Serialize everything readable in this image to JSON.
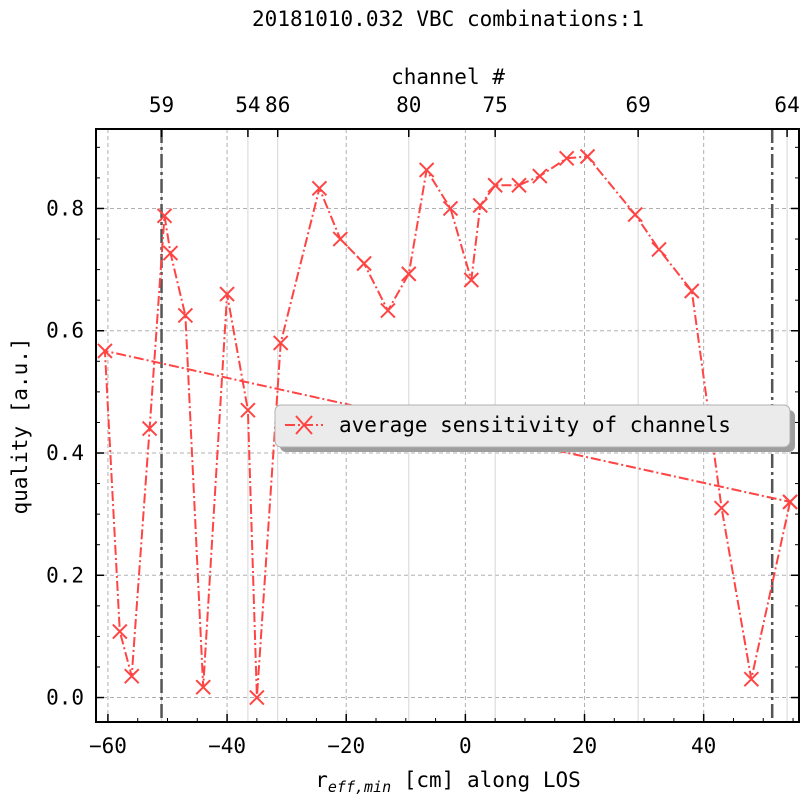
{
  "chart_data": {
    "type": "line",
    "title": "20181010.032 VBC combinations:1",
    "xlabel_main": "r",
    "xlabel_sub": "eff,min",
    "xlabel_rest": " [cm] along LOS",
    "ylabel": "quality [a.u.]",
    "top_xlabel": "channel #",
    "xlim": [
      -62,
      56
    ],
    "ylim": [
      -0.04,
      0.93
    ],
    "x_ticks": [
      -60,
      -40,
      -20,
      0,
      20,
      40
    ],
    "x_tick_labels": [
      "−60",
      "−40",
      "−20",
      "0",
      "20",
      "40"
    ],
    "y_ticks": [
      0.0,
      0.2,
      0.4,
      0.6,
      0.8
    ],
    "y_tick_labels": [
      "0.0",
      "0.2",
      "0.4",
      "0.6",
      "0.8"
    ],
    "grid": true,
    "top_channel_ticks": [
      {
        "x": -51,
        "label": "59"
      },
      {
        "x": -36.5,
        "label": "54"
      },
      {
        "x": -31.5,
        "label": "86"
      },
      {
        "x": -9.5,
        "label": "80"
      },
      {
        "x": 5,
        "label": "75"
      },
      {
        "x": 29,
        "label": "69"
      },
      {
        "x": 54,
        "label": "64"
      }
    ],
    "vertical_lines": [
      -51,
      51.5
    ],
    "legend": {
      "label": "average sensitivity of channels",
      "placement": "center-right"
    },
    "series": [
      {
        "name": "average sensitivity of channels",
        "color": "#ff4444",
        "marker": "x",
        "linestyle": "dashdot",
        "points": [
          [
            54.5,
            0.32
          ],
          [
            48,
            0.03
          ],
          [
            43,
            0.31
          ],
          [
            38,
            0.665
          ],
          [
            32.5,
            0.733
          ],
          [
            28.5,
            0.79
          ],
          [
            20.5,
            0.885
          ],
          [
            17,
            0.882
          ],
          [
            12.5,
            0.853
          ],
          [
            9,
            0.838
          ],
          [
            5,
            0.838
          ],
          [
            2.5,
            0.805
          ],
          [
            1,
            0.683
          ],
          [
            -2.5,
            0.8
          ],
          [
            -6.5,
            0.863
          ],
          [
            -9.5,
            0.693
          ],
          [
            -13,
            0.633
          ],
          [
            -17,
            0.71
          ],
          [
            -21,
            0.75
          ],
          [
            -24.5,
            0.833
          ],
          [
            -31,
            0.58
          ],
          [
            -35,
            0.0
          ],
          [
            -36.5,
            0.47
          ],
          [
            -40,
            0.66
          ],
          [
            -44,
            0.017
          ],
          [
            -47,
            0.625
          ],
          [
            -49.5,
            0.727
          ],
          [
            -50.5,
            0.788
          ],
          [
            -53,
            0.44
          ],
          [
            -56,
            0.035
          ],
          [
            -58,
            0.108
          ],
          [
            -60.5,
            0.567
          ],
          [
            54.5,
            0.32
          ]
        ]
      }
    ]
  }
}
